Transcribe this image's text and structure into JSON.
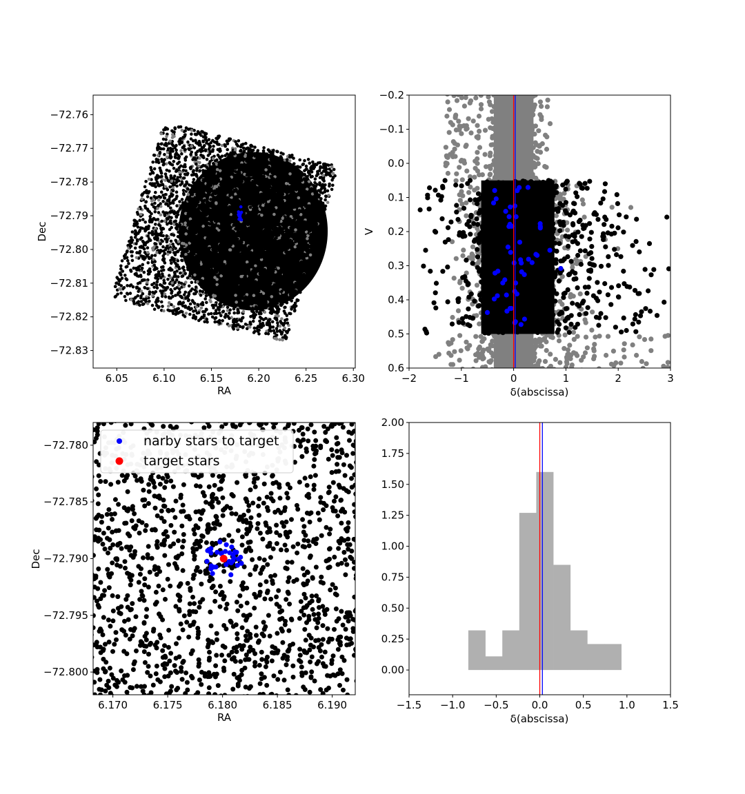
{
  "chart_data": [
    {
      "id": "p1",
      "type": "scatter",
      "xlabel": "RA",
      "ylabel": "Dec",
      "xlim": [
        6.025,
        6.302
      ],
      "ylim": [
        -72.8352,
        -72.7542
      ],
      "xticks": [
        6.05,
        6.1,
        6.15,
        6.2,
        6.25,
        6.3
      ],
      "xtick_labels": [
        "6.05",
        "6.10",
        "6.15",
        "6.20",
        "6.25",
        "6.30"
      ],
      "yticks": [
        -72.76,
        -72.77,
        -72.78,
        -72.79,
        -72.8,
        -72.81,
        -72.82,
        -72.83
      ],
      "ytick_labels": [
        "−72.76",
        "−72.77",
        "−72.78",
        "−72.79",
        "−72.80",
        "−72.81",
        "−72.82",
        "−72.83"
      ],
      "field_corners": [
        [
          6.043,
          -72.8145
        ],
        [
          6.1,
          -72.762
        ],
        [
          6.285,
          -72.7755
        ],
        [
          6.228,
          -72.8275
        ]
      ],
      "field_center": [
        6.2,
        -72.795
      ],
      "highlight": {
        "ra": 6.18,
        "dec": -72.79,
        "color": "#0000ff"
      },
      "colors": {
        "field": "#000000",
        "background": "#808080"
      }
    },
    {
      "id": "p2",
      "type": "scatter",
      "xlabel": "δ(abscissa)",
      "ylabel": "V",
      "xlim": [
        -2,
        3
      ],
      "ylim": [
        0.6,
        -0.2
      ],
      "xticks": [
        -2,
        -1,
        0,
        1,
        2,
        3
      ],
      "xtick_labels": [
        "−2",
        "−1",
        "0",
        "1",
        "2",
        "3"
      ],
      "yticks": [
        -0.2,
        -0.1,
        0.0,
        0.1,
        0.2,
        0.3,
        0.4,
        0.5,
        0.6
      ],
      "ytick_labels": [
        "−0.2",
        "−0.1",
        "0.0",
        "0.1",
        "0.2",
        "0.3",
        "0.4",
        "0.5",
        "0.6"
      ],
      "selection_band": [
        0.05,
        0.5
      ],
      "vlines": [
        {
          "x": 0.0,
          "color": "#ff0000"
        },
        {
          "x": 0.03,
          "color": "#0000ff"
        }
      ],
      "colors": {
        "selected": "#000000",
        "all": "#808080",
        "nearby": "#0000ff"
      }
    },
    {
      "id": "p3",
      "type": "scatter",
      "xlabel": "RA",
      "ylabel": "Dec",
      "xlim": [
        6.1682,
        6.1921
      ],
      "ylim": [
        -72.802,
        -72.778
      ],
      "xticks": [
        6.17,
        6.175,
        6.18,
        6.185,
        6.19
      ],
      "xtick_labels": [
        "6.170",
        "6.175",
        "6.180",
        "6.185",
        "6.190"
      ],
      "yticks": [
        -72.78,
        -72.785,
        -72.79,
        -72.795,
        -72.8
      ],
      "ytick_labels": [
        "−72.780",
        "−72.785",
        "−72.790",
        "−72.795",
        "−72.800"
      ],
      "target": {
        "ra": 6.1801,
        "dec": -72.79
      },
      "legend": {
        "position": "upper-left",
        "entries": [
          {
            "label": "narby stars to target",
            "color": "#0000ff"
          },
          {
            "label": "target stars",
            "color": "#ff0000"
          }
        ]
      },
      "colors": {
        "field": "#000000",
        "nearby": "#0000ff",
        "target": "#ff0000"
      }
    },
    {
      "id": "p4",
      "type": "bar",
      "xlabel": "δ(abscissa)",
      "xlim": [
        -1.5,
        1.5
      ],
      "ylim": [
        -0.2,
        2.0
      ],
      "xticks": [
        -1.5,
        -1.0,
        -0.5,
        0.0,
        0.5,
        1.0,
        1.5
      ],
      "xtick_labels": [
        "−1.5",
        "−1.0",
        "−0.5",
        "0.0",
        "0.5",
        "1.0",
        "1.5"
      ],
      "yticks": [
        0.0,
        0.25,
        0.5,
        0.75,
        1.0,
        1.25,
        1.5,
        1.75,
        2.0
      ],
      "ytick_labels": [
        "0.00",
        "0.25",
        "0.50",
        "0.75",
        "1.00",
        "1.25",
        "1.50",
        "1.75",
        "2.00"
      ],
      "bin_edges": [
        -0.82,
        -0.625,
        -0.43,
        -0.235,
        -0.04,
        0.155,
        0.35,
        0.545,
        0.74,
        0.935
      ],
      "values": [
        0.32,
        0.11,
        0.32,
        1.27,
        1.6,
        0.85,
        0.32,
        0.21,
        0.21
      ],
      "vlines": [
        {
          "x": 0.0,
          "color": "#ff0000"
        },
        {
          "x": 0.03,
          "color": "#0000ff"
        }
      ],
      "colors": {
        "bars": "#b0b0b0"
      }
    }
  ]
}
